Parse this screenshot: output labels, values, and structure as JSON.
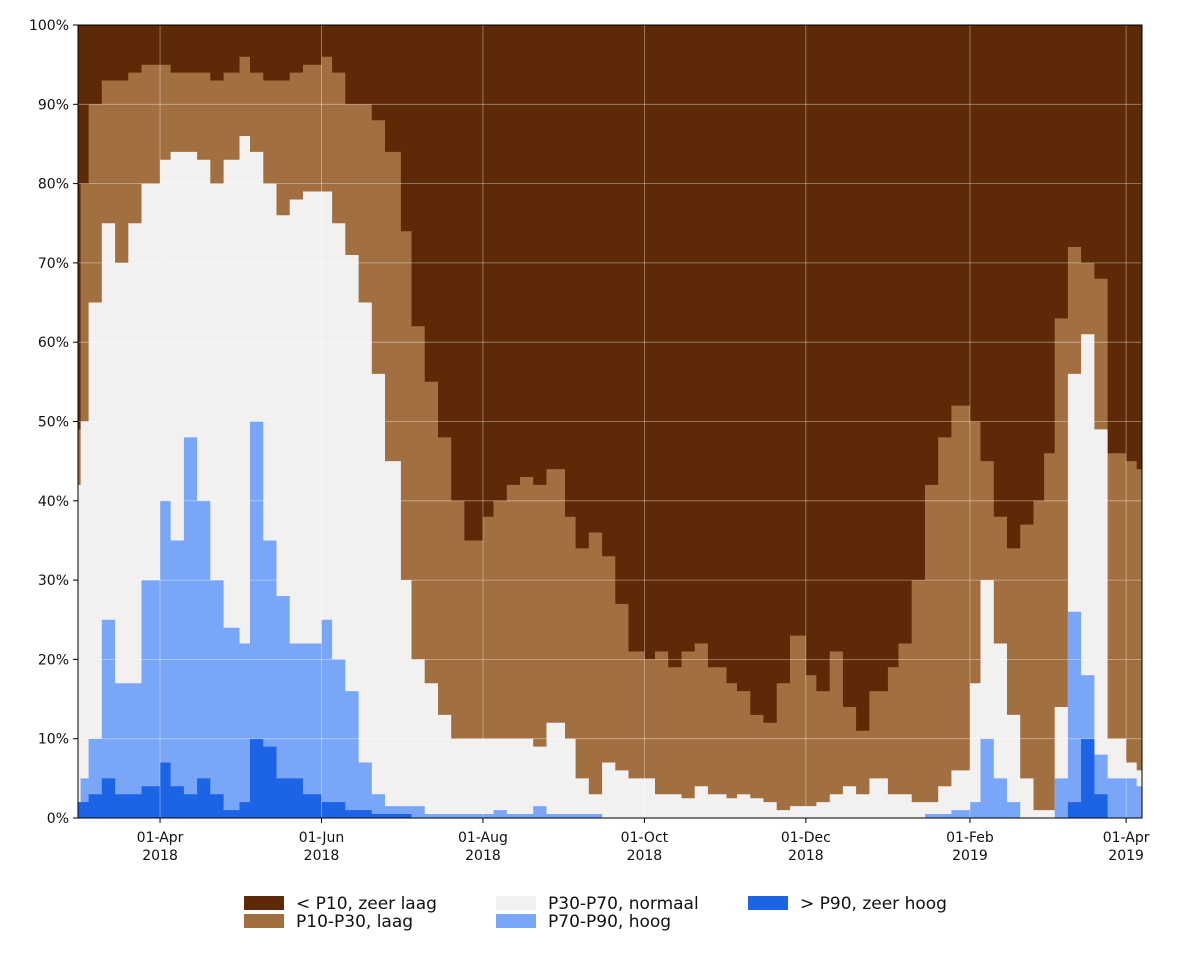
{
  "chart_data": {
    "type": "area",
    "stacked": true,
    "grid": true,
    "legend_position": "bottom",
    "ylim": [
      0,
      100
    ],
    "xlim": [
      "2018-03-01",
      "2019-04-07"
    ],
    "y_ticks": [
      {
        "value": 0,
        "label": "0%"
      },
      {
        "value": 10,
        "label": "10%"
      },
      {
        "value": 20,
        "label": "20%"
      },
      {
        "value": 30,
        "label": "30%"
      },
      {
        "value": 40,
        "label": "40%"
      },
      {
        "value": 50,
        "label": "50%"
      },
      {
        "value": 60,
        "label": "60%"
      },
      {
        "value": 70,
        "label": "70%"
      },
      {
        "value": 80,
        "label": "80%"
      },
      {
        "value": 90,
        "label": "90%"
      },
      {
        "value": 100,
        "label": "100%"
      }
    ],
    "x_ticks": [
      {
        "date": "2018-04-01",
        "label": "01-Apr",
        "year": "2018"
      },
      {
        "date": "2018-06-01",
        "label": "01-Jun",
        "year": "2018"
      },
      {
        "date": "2018-08-01",
        "label": "01-Aug",
        "year": "2018"
      },
      {
        "date": "2018-10-01",
        "label": "01-Oct",
        "year": "2018"
      },
      {
        "date": "2018-12-01",
        "label": "01-Dec",
        "year": "2018"
      },
      {
        "date": "2019-02-01",
        "label": "01-Feb",
        "year": "2019"
      },
      {
        "date": "2019-04-01",
        "label": "01-Apr",
        "year": "2019"
      }
    ],
    "x": [
      "2018-03-01",
      "2018-03-02",
      "2018-03-05",
      "2018-03-10",
      "2018-03-15",
      "2018-03-20",
      "2018-03-25",
      "2018-04-01",
      "2018-04-05",
      "2018-04-10",
      "2018-04-15",
      "2018-04-20",
      "2018-04-25",
      "2018-05-01",
      "2018-05-05",
      "2018-05-10",
      "2018-05-15",
      "2018-05-20",
      "2018-05-25",
      "2018-06-01",
      "2018-06-05",
      "2018-06-10",
      "2018-06-15",
      "2018-06-20",
      "2018-06-25",
      "2018-07-01",
      "2018-07-05",
      "2018-07-10",
      "2018-07-15",
      "2018-07-20",
      "2018-07-25",
      "2018-08-01",
      "2018-08-05",
      "2018-08-10",
      "2018-08-15",
      "2018-08-20",
      "2018-08-25",
      "2018-09-01",
      "2018-09-05",
      "2018-09-10",
      "2018-09-15",
      "2018-09-20",
      "2018-09-25",
      "2018-10-01",
      "2018-10-05",
      "2018-10-10",
      "2018-10-15",
      "2018-10-20",
      "2018-10-25",
      "2018-11-01",
      "2018-11-05",
      "2018-11-10",
      "2018-11-15",
      "2018-11-20",
      "2018-11-25",
      "2018-12-01",
      "2018-12-05",
      "2018-12-10",
      "2018-12-15",
      "2018-12-20",
      "2018-12-25",
      "2019-01-01",
      "2019-01-05",
      "2019-01-10",
      "2019-01-15",
      "2019-01-20",
      "2019-01-25",
      "2019-02-01",
      "2019-02-05",
      "2019-02-10",
      "2019-02-15",
      "2019-02-20",
      "2019-02-25",
      "2019-03-01",
      "2019-03-05",
      "2019-03-10",
      "2019-03-15",
      "2019-03-20",
      "2019-03-25",
      "2019-04-01",
      "2019-04-05"
    ],
    "cumulative": [
      {
        "name": "> P90, zeer hoog",
        "values": [
          2,
          2,
          3,
          5,
          3,
          3,
          4,
          7,
          4,
          3,
          5,
          3,
          1,
          2,
          10,
          9,
          5,
          5,
          3,
          2,
          2,
          1,
          1,
          0.5,
          0.5,
          0.5,
          0,
          0,
          0,
          0,
          0,
          0,
          0,
          0,
          0,
          0,
          0,
          0,
          0,
          0,
          0,
          0,
          0,
          0,
          0,
          0,
          0,
          0,
          0,
          0,
          0,
          0,
          0,
          0,
          0,
          0,
          0,
          0,
          0,
          0,
          0,
          0,
          0,
          0,
          0,
          0,
          0,
          0,
          0,
          0,
          0,
          0,
          0,
          0,
          0,
          2,
          10,
          3,
          0,
          0,
          0,
          0
        ]
      },
      {
        "name": "P70-P90, hoog",
        "values": [
          2,
          5,
          10,
          25,
          17,
          17,
          30,
          40,
          35,
          48,
          40,
          30,
          24,
          22,
          50,
          35,
          28,
          22,
          22,
          25,
          20,
          16,
          7,
          3,
          1.5,
          1.5,
          1.5,
          0.5,
          0.5,
          0.5,
          0.5,
          0.5,
          1,
          0.5,
          0.5,
          1.5,
          0.5,
          0.5,
          0.5,
          0.5,
          0,
          0,
          0,
          0,
          0,
          0,
          0,
          0,
          0,
          0,
          0,
          0,
          0,
          0,
          0,
          0,
          0,
          0,
          0,
          0,
          0,
          0,
          0,
          0,
          0.5,
          0.5,
          1,
          2,
          10,
          5,
          2,
          0,
          0,
          0,
          5,
          26,
          18,
          8,
          5,
          5,
          4
        ]
      },
      {
        "name": "P30-P70, normaal",
        "values": [
          42,
          50,
          65,
          75,
          70,
          75,
          80,
          83,
          84,
          84,
          83,
          80,
          83,
          86,
          84,
          80,
          76,
          78,
          79,
          79,
          75,
          71,
          65,
          56,
          45,
          30,
          20,
          17,
          13,
          10,
          10,
          10,
          10,
          10,
          10,
          9,
          12,
          10,
          5,
          3,
          7,
          6,
          5,
          5,
          3,
          3,
          2.5,
          4,
          3,
          2.5,
          3,
          2.5,
          2,
          1,
          1.5,
          1.5,
          2,
          3,
          4,
          3,
          5,
          3,
          3,
          2,
          2,
          4,
          6,
          17,
          30,
          22,
          13,
          5,
          1,
          1,
          14,
          56,
          61,
          49,
          10,
          7,
          6
        ]
      },
      {
        "name": "P10-P30, laag",
        "values": [
          49,
          80,
          90,
          93,
          93,
          94,
          95,
          95,
          94,
          94,
          94,
          93,
          94,
          96,
          94,
          93,
          93,
          94,
          95,
          96,
          94,
          90,
          90,
          88,
          84,
          74,
          62,
          55,
          48,
          40,
          35,
          38,
          40,
          42,
          43,
          42,
          44,
          38,
          34,
          36,
          33,
          27,
          21,
          20,
          21,
          19,
          21,
          22,
          19,
          17,
          16,
          13,
          12,
          17,
          23,
          18,
          16,
          21,
          14,
          11,
          16,
          19,
          22,
          30,
          42,
          48,
          52,
          50,
          45,
          38,
          34,
          37,
          40,
          46,
          63,
          72,
          70,
          68,
          46,
          45,
          44
        ]
      }
    ],
    "legend": [
      {
        "label": "< P10, zeer laag",
        "color": "#5e2906"
      },
      {
        "label": "P10-P30, laag",
        "color": "#a26f40"
      },
      {
        "label": "P30-P70, normaal",
        "color": "#f2f1f0"
      },
      {
        "label": "P70-P90, hoog",
        "color": "#79a6f6"
      },
      {
        "label": "> P90, zeer hoog",
        "color": "#1d63e6"
      }
    ],
    "colors": {
      "zeer_laag": "#5e2906",
      "laag": "#a26f40",
      "normaal": "#f2f1f0",
      "hoog": "#79a6f6",
      "zeer_hoog": "#1d63e6",
      "grid": "#ffffff"
    }
  }
}
